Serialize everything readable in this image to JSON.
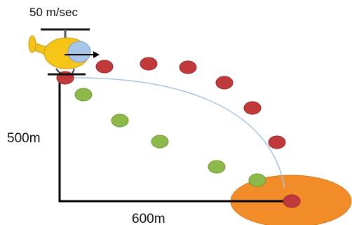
{
  "labels": {
    "speed": "50 m/sec",
    "height": "500m",
    "distance": "600m"
  }
}
